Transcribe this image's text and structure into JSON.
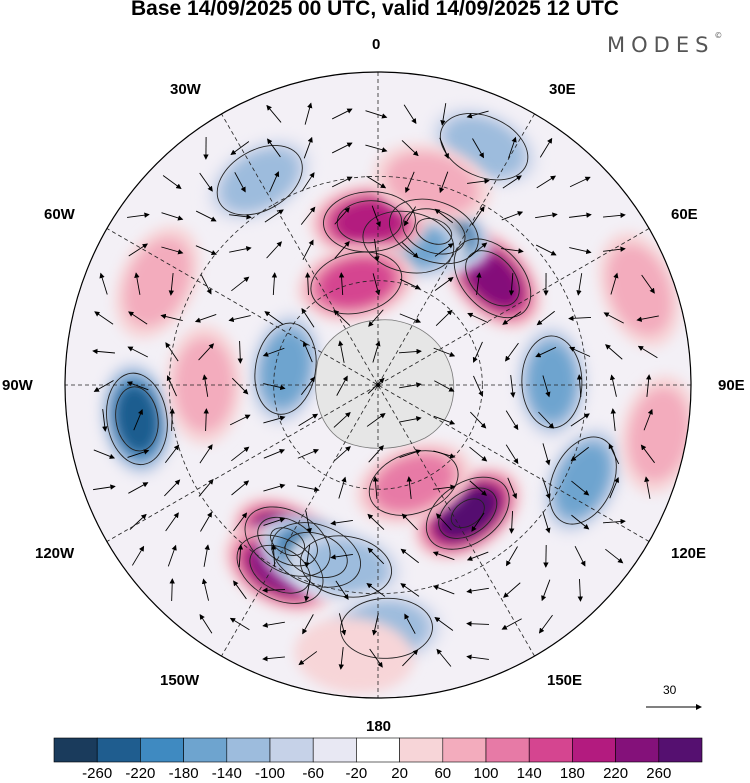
{
  "title": "Base 14/09/2025 00 UTC, valid 14/09/2025 12 UTC",
  "brand": {
    "name": "MODES",
    "mark": "©"
  },
  "longitude_labels": {
    "lon_0": "0",
    "lon_30e": "30E",
    "lon_60e": "60E",
    "lon_90e": "90E",
    "lon_120e": "120E",
    "lon_150e": "150E",
    "lon_180": "180",
    "lon_150w": "150W",
    "lon_120w": "120W",
    "lon_90w": "90W",
    "lon_60w": "60W",
    "lon_30w": "30W"
  },
  "reference_vector": {
    "label": "30"
  },
  "colorbar": {
    "colors": [
      "#1a3b5c",
      "#1f5d8f",
      "#3f8ac1",
      "#6ea4cf",
      "#9dbcdd",
      "#c6d2e8",
      "#e8e8f3",
      "#ffffff",
      "#f7d5d8",
      "#f3acbd",
      "#e77aa6",
      "#d54590",
      "#b31b7f",
      "#84117a",
      "#551070"
    ],
    "labels": [
      "-260",
      "-220",
      "-180",
      "-140",
      "-100",
      "-60",
      "-20",
      "20",
      "60",
      "100",
      "140",
      "180",
      "220",
      "260"
    ]
  },
  "anomalies": [
    {
      "lon": -150,
      "lat": -38,
      "value": 275
    },
    {
      "lon": -152,
      "lat": -30,
      "value": 220
    },
    {
      "lon": 145,
      "lat": -45,
      "value": 270
    },
    {
      "lon": 47,
      "lat": -45,
      "value": 250
    },
    {
      "lon": 20,
      "lat": -43,
      "value": -275
    },
    {
      "lon": 12,
      "lat": -48,
      "value": -150
    },
    {
      "lon": -3,
      "lat": -43,
      "value": 200
    },
    {
      "lon": -12,
      "lat": -60,
      "value": 160
    },
    {
      "lon": -98,
      "lat": -20,
      "value": -230
    },
    {
      "lon": -80,
      "lat": -63,
      "value": -150
    },
    {
      "lon": -160,
      "lat": -38,
      "value": -230
    },
    {
      "lon": -170,
      "lat": -37,
      "value": -120
    },
    {
      "lon": 89,
      "lat": -40,
      "value": -165
    },
    {
      "lon": 115,
      "lat": -25,
      "value": -150
    },
    {
      "lon": -30,
      "lat": -22,
      "value": -120
    },
    {
      "lon": 24,
      "lat": -15,
      "value": -115
    },
    {
      "lon": 178,
      "lat": -20,
      "value": -120
    },
    {
      "lon": -90,
      "lat": -40,
      "value": 80
    },
    {
      "lon": -65,
      "lat": -20,
      "value": 85
    },
    {
      "lon": 15,
      "lat": -30,
      "value": 90
    },
    {
      "lon": 70,
      "lat": -10,
      "value": 60
    },
    {
      "lon": 100,
      "lat": -8,
      "value": 60
    },
    {
      "lon": 160,
      "lat": -60,
      "value": 120
    },
    {
      "lon": -175,
      "lat": -12,
      "value": 50
    }
  ]
}
